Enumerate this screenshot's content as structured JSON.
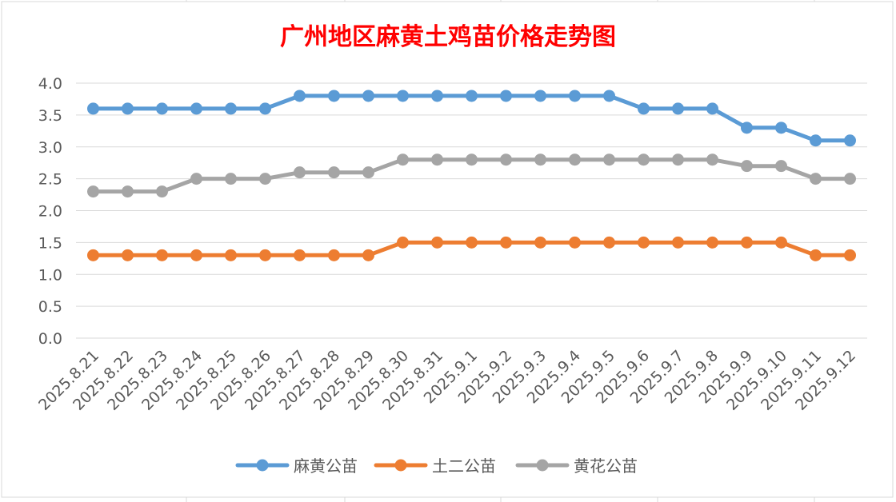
{
  "chart_data": {
    "type": "line",
    "title": "广州地区麻黄土鸡苗价格走势图",
    "xlabel": "",
    "ylabel": "",
    "ylim": [
      0,
      4
    ],
    "yticks": [
      "0.0",
      "0.5",
      "1.0",
      "1.5",
      "2.0",
      "2.5",
      "3.0",
      "3.5",
      "4.0"
    ],
    "grid": true,
    "legend_position": "bottom",
    "categories": [
      "2025.8.21",
      "2025.8.22",
      "2025.8.23",
      "2025.8.24",
      "2025.8.25",
      "2025.8.26",
      "2025.8.27",
      "2025.8.28",
      "2025.8.29",
      "2025.8.30",
      "2025.8.31",
      "2025.9.1",
      "2025.9.2",
      "2025.9.3",
      "2025.9.4",
      "2025.9.5",
      "2025.9.6",
      "2025.9.7",
      "2025.9.8",
      "2025.9.9",
      "2025.9.10",
      "2025.9.11",
      "2025.9.12"
    ],
    "series": [
      {
        "name": "麻黄公苗",
        "color": "#5b9bd5",
        "values": [
          3.6,
          3.6,
          3.6,
          3.6,
          3.6,
          3.6,
          3.8,
          3.8,
          3.8,
          3.8,
          3.8,
          3.8,
          3.8,
          3.8,
          3.8,
          3.8,
          3.6,
          3.6,
          3.6,
          3.3,
          3.3,
          3.1,
          3.1
        ]
      },
      {
        "name": "土二公苗",
        "color": "#ed7d31",
        "values": [
          1.3,
          1.3,
          1.3,
          1.3,
          1.3,
          1.3,
          1.3,
          1.3,
          1.3,
          1.5,
          1.5,
          1.5,
          1.5,
          1.5,
          1.5,
          1.5,
          1.5,
          1.5,
          1.5,
          1.5,
          1.5,
          1.3,
          1.3
        ]
      },
      {
        "name": "黄花公苗",
        "color": "#a5a5a5",
        "values": [
          2.3,
          2.3,
          2.3,
          2.5,
          2.5,
          2.5,
          2.6,
          2.6,
          2.6,
          2.8,
          2.8,
          2.8,
          2.8,
          2.8,
          2.8,
          2.8,
          2.8,
          2.8,
          2.8,
          2.7,
          2.7,
          2.5,
          2.5
        ]
      }
    ]
  }
}
